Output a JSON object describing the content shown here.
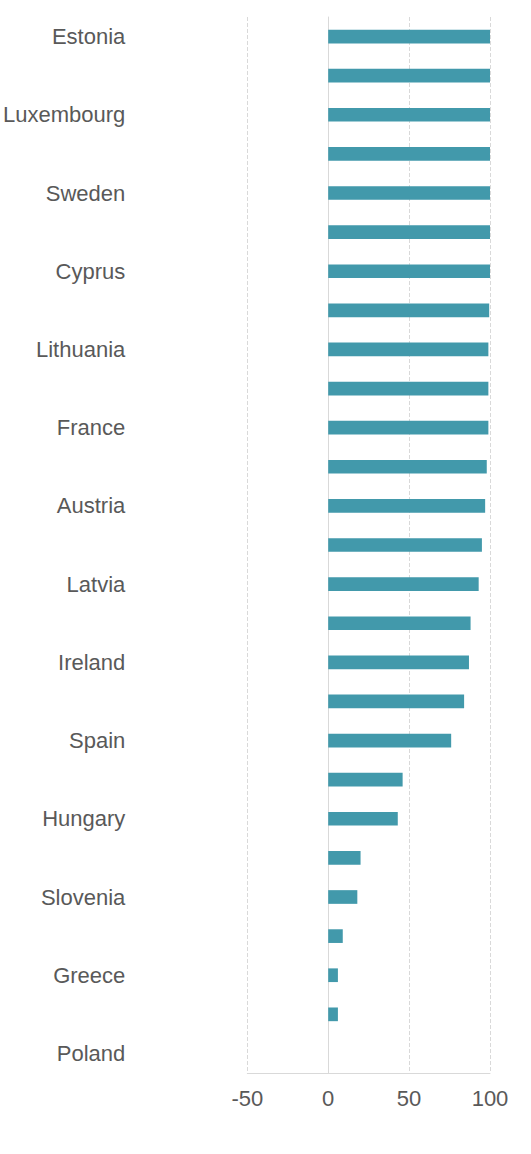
{
  "chart_data": {
    "type": "bar",
    "orientation": "horizontal",
    "categories": [
      "Estonia",
      null,
      "Luxembourg",
      null,
      "Sweden",
      null,
      "Cyprus",
      null,
      "Lithuania",
      null,
      "France",
      null,
      "Austria",
      null,
      "Latvia",
      null,
      "Ireland",
      null,
      "Spain",
      null,
      "Hungary",
      null,
      "Slovenia",
      null,
      "Greece",
      null,
      "Poland"
    ],
    "values": [
      100,
      100,
      100,
      100,
      100,
      100,
      100,
      99.5,
      99,
      99,
      99,
      98,
      97,
      95,
      93,
      88,
      87,
      84,
      76,
      46,
      43,
      20,
      18,
      9,
      6,
      6,
      0
    ],
    "color": "#4299ab",
    "xlim": [
      -50,
      100
    ],
    "xticks": [
      -50,
      0,
      50,
      100
    ],
    "grid": true
  }
}
